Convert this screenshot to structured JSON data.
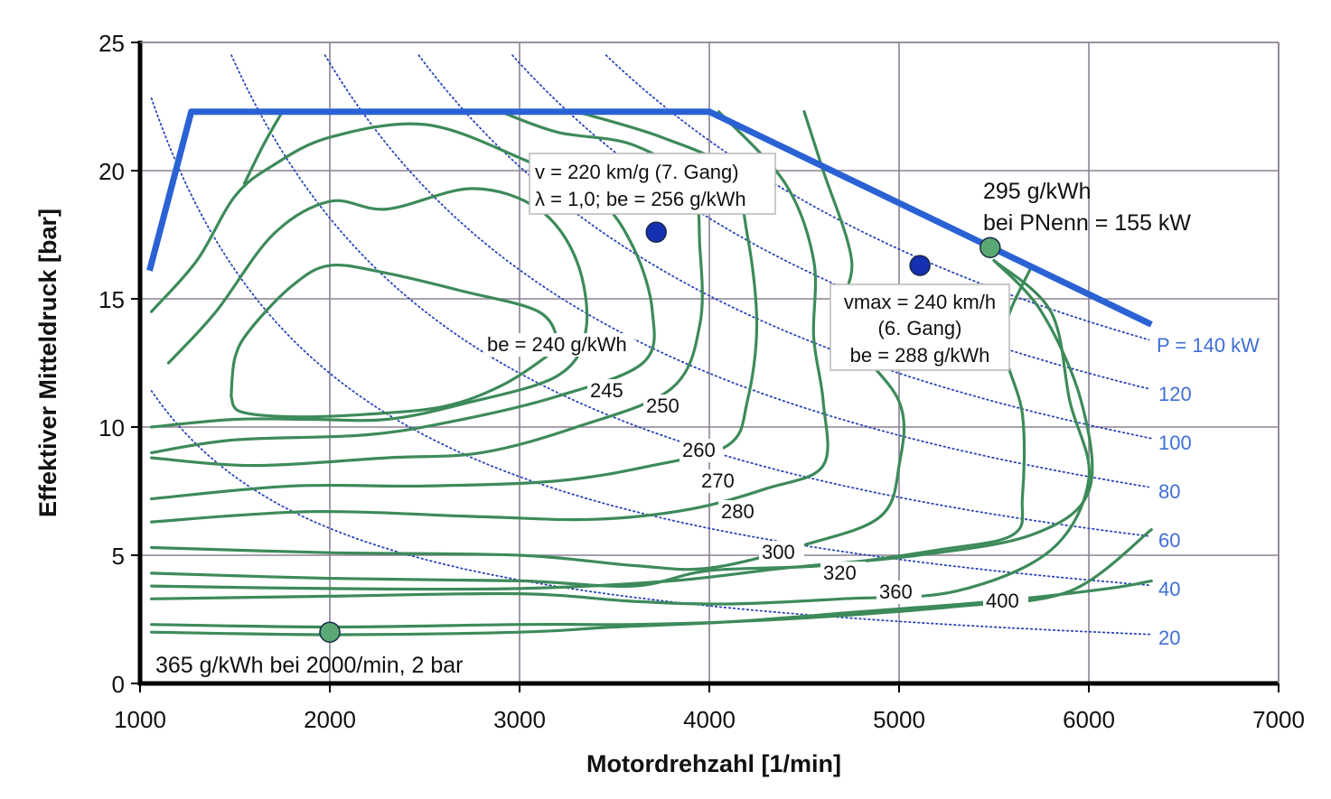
{
  "chart_data": {
    "type": "contour",
    "xlabel": "Motordrehzahl [1/min]",
    "ylabel": "Effektiver Mitteldruck [bar]",
    "xlim": [
      1000,
      7000
    ],
    "ylim": [
      0,
      25
    ],
    "x_ticks": [
      "1000",
      "2000",
      "3000",
      "4000",
      "5000",
      "6000",
      "7000"
    ],
    "y_ticks": [
      "0",
      "5",
      "10",
      "15",
      "20",
      "25"
    ],
    "grid": true,
    "colors": {
      "full_load": "#2a62d4",
      "contour": "#3d8a5a",
      "power": "#2844b8",
      "power_label": "#3f6fd6",
      "blue_point": "#1530b0",
      "green_point": "#5aa873"
    },
    "full_load_curve": [
      [
        1050,
        16.1
      ],
      [
        1270,
        22.3
      ],
      [
        4000,
        22.3
      ],
      [
        6330,
        14.0
      ]
    ],
    "power_lines": [
      {
        "label": "P = 140 kW",
        "kw": 140
      },
      {
        "label": "120",
        "kw": 120
      },
      {
        "label": "100",
        "kw": 100
      },
      {
        "label": "80",
        "kw": 80
      },
      {
        "label": "60",
        "kw": 60
      },
      {
        "label": "40",
        "kw": 40
      },
      {
        "label": "20",
        "kw": 20
      }
    ],
    "bsfc_contours": [
      {
        "label": "be = 240 g/kWh",
        "points": [
          [
            1480,
            11.2
          ],
          [
            1500,
            12.7
          ],
          [
            1580,
            13.8
          ],
          [
            1800,
            15.5
          ],
          [
            2000,
            16.3
          ],
          [
            2300,
            16.0
          ],
          [
            2700,
            15.3
          ],
          [
            3100,
            14.5
          ],
          [
            3200,
            13.3
          ],
          [
            3150,
            12.8
          ],
          [
            2900,
            11.6
          ],
          [
            2600,
            10.8
          ],
          [
            2200,
            10.5
          ],
          [
            1800,
            10.4
          ],
          [
            1530,
            10.6
          ],
          [
            1480,
            11.2
          ]
        ]
      },
      {
        "label": "245",
        "points": [
          [
            1150,
            12.5
          ],
          [
            1400,
            14.5
          ],
          [
            1700,
            17.5
          ],
          [
            2000,
            18.8
          ],
          [
            2300,
            18.5
          ],
          [
            2750,
            19.3
          ],
          [
            3100,
            18.5
          ],
          [
            3300,
            16.5
          ],
          [
            3350,
            13.8
          ],
          [
            3200,
            12.0
          ],
          [
            2700,
            10.9
          ],
          [
            2300,
            10.3
          ],
          [
            1900,
            10.3
          ],
          [
            1500,
            10.3
          ],
          [
            1060,
            10.0
          ]
        ]
      },
      {
        "label": "250",
        "points": [
          [
            1060,
            14.5
          ],
          [
            1300,
            16.5
          ],
          [
            1500,
            19.0
          ],
          [
            1700,
            20.2
          ],
          [
            2000,
            21.3
          ],
          [
            2500,
            21.8
          ],
          [
            3000,
            20.5
          ],
          [
            3400,
            19.0
          ],
          [
            3600,
            17.0
          ],
          [
            3700,
            14.5
          ],
          [
            3650,
            12.5
          ],
          [
            3200,
            11.2
          ],
          [
            2700,
            10.3
          ],
          [
            2200,
            9.7
          ],
          [
            1500,
            9.5
          ],
          [
            1060,
            9.0
          ]
        ]
      },
      {
        "label": "260",
        "points": [
          [
            1550,
            19.5
          ],
          [
            1650,
            21.0
          ],
          [
            1750,
            22.3
          ]
        ]
      },
      {
        "label": "260",
        "points": [
          [
            2900,
            22.3
          ],
          [
            3200,
            21.5
          ],
          [
            3600,
            21.0
          ],
          [
            3900,
            19.5
          ],
          [
            3950,
            17.0
          ],
          [
            3950,
            14.0
          ],
          [
            3800,
            11.5
          ],
          [
            3300,
            10.0
          ],
          [
            2800,
            9.0
          ],
          [
            2300,
            8.8
          ],
          [
            1600,
            8.5
          ],
          [
            1060,
            8.8
          ]
        ]
      },
      {
        "label": "270",
        "points": [
          [
            1060,
            7.2
          ],
          [
            1800,
            7.7
          ],
          [
            2500,
            7.7
          ],
          [
            3200,
            7.9
          ],
          [
            3700,
            8.5
          ],
          [
            4100,
            9.3
          ],
          [
            4200,
            11.0
          ],
          [
            4250,
            14.0
          ],
          [
            4200,
            17.5
          ],
          [
            4100,
            20.0
          ],
          [
            3750,
            21.3
          ],
          [
            3300,
            22.3
          ]
        ]
      },
      {
        "label": "280",
        "points": [
          [
            1060,
            6.3
          ],
          [
            1900,
            6.7
          ],
          [
            2800,
            6.5
          ],
          [
            3400,
            6.4
          ],
          [
            3900,
            6.8
          ],
          [
            4300,
            7.6
          ],
          [
            4600,
            8.5
          ],
          [
            4600,
            11.0
          ],
          [
            4550,
            13.5
          ],
          [
            4550,
            16.5
          ],
          [
            4400,
            19.5
          ],
          [
            4050,
            22.3
          ]
        ]
      },
      {
        "label": "300",
        "points": [
          [
            1060,
            5.3
          ],
          [
            2000,
            5.1
          ],
          [
            3000,
            5.0
          ],
          [
            3600,
            4.6
          ],
          [
            4000,
            4.5
          ],
          [
            4500,
            5.4
          ],
          [
            4900,
            6.5
          ],
          [
            5000,
            8.5
          ],
          [
            5000,
            11.0
          ],
          [
            4700,
            14.0
          ],
          [
            4750,
            16.5
          ],
          [
            4600,
            20.0
          ],
          [
            4500,
            22.3
          ]
        ]
      },
      {
        "label": "320",
        "points": [
          [
            1060,
            4.3
          ],
          [
            2000,
            4.1
          ],
          [
            3000,
            4.0
          ],
          [
            3600,
            3.8
          ],
          [
            4000,
            4.4
          ],
          [
            4600,
            4.6
          ],
          [
            5200,
            5.2
          ],
          [
            5600,
            5.8
          ],
          [
            5650,
            7.3
          ],
          [
            5650,
            10.5
          ],
          [
            5550,
            13.5
          ],
          [
            5700,
            16.3
          ]
        ]
      },
      {
        "label": "360",
        "points": [
          [
            1060,
            3.3
          ],
          [
            2000,
            3.4
          ],
          [
            3000,
            3.5
          ],
          [
            3600,
            3.2
          ],
          [
            4100,
            3.1
          ],
          [
            4700,
            3.3
          ],
          [
            5300,
            3.6
          ],
          [
            5800,
            5.2
          ],
          [
            6000,
            8.0
          ],
          [
            5900,
            11.0
          ],
          [
            5800,
            14.5
          ],
          [
            5500,
            16.5
          ]
        ]
      },
      {
        "label": "400",
        "points": [
          [
            1060,
            2.3
          ],
          [
            2000,
            2.2
          ],
          [
            3000,
            2.3
          ],
          [
            3600,
            2.3
          ],
          [
            4100,
            2.4
          ],
          [
            4600,
            2.6
          ],
          [
            5300,
            3.0
          ],
          [
            5900,
            3.6
          ],
          [
            6330,
            6.0
          ]
        ]
      },
      {
        "label": "",
        "points": [
          [
            1060,
            2.0
          ],
          [
            2000,
            1.9
          ],
          [
            3000,
            2.0
          ],
          [
            3500,
            2.2
          ],
          [
            4100,
            2.4
          ],
          [
            4800,
            2.8
          ],
          [
            5500,
            3.2
          ],
          [
            6100,
            3.7
          ],
          [
            6330,
            4.0
          ]
        ]
      },
      {
        "label": "",
        "points": [
          [
            1060,
            3.8
          ],
          [
            2000,
            3.7
          ],
          [
            3000,
            3.7
          ],
          [
            3800,
            4.0
          ],
          [
            4400,
            4.5
          ],
          [
            5100,
            5.0
          ],
          [
            5700,
            5.8
          ],
          [
            6000,
            7.5
          ],
          [
            5960,
            11.0
          ],
          [
            5750,
            14.5
          ],
          [
            5500,
            16.5
          ]
        ]
      }
    ],
    "operating_points": [
      {
        "color": "blue",
        "x": 3720,
        "y": 17.6
      },
      {
        "color": "blue",
        "x": 5110,
        "y": 16.3
      },
      {
        "color": "green",
        "x": 5480,
        "y": 17.0
      },
      {
        "color": "green",
        "x": 2000,
        "y": 2.0
      }
    ],
    "annotations": {
      "box1": [
        "v = 220 km/g (7. Gang)",
        "λ = 1,0; be = 256 g/kWh"
      ],
      "box2": [
        "vmax = 240 km/h",
        "(6. Gang)",
        "be = 288 g/kWh"
      ],
      "rated": [
        "295 g/kWh",
        "bei PNenn = 155 kW"
      ],
      "low_load": "365 g/kWh bei 2000/min, 2 bar"
    }
  }
}
